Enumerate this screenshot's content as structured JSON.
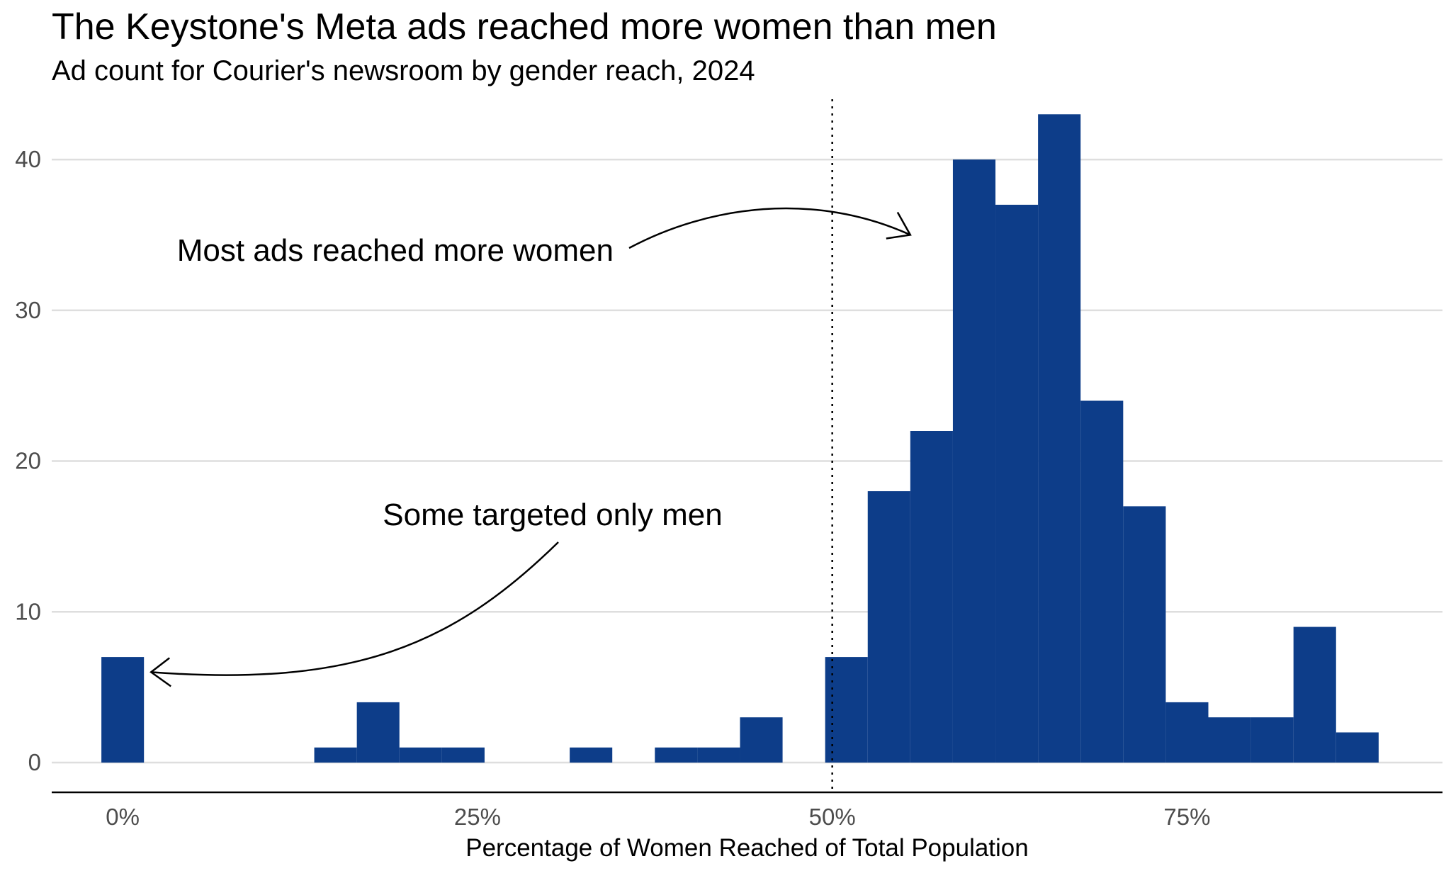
{
  "chart_data": {
    "type": "bar",
    "title": "The Keystone's Meta ads reached more women than men",
    "subtitle": "Ad count for Courier's newsroom by gender reach, 2024",
    "xlabel": "Percentage of Women Reached of Total Population",
    "ylabel": "",
    "bar_color": "#0d3d89",
    "bin_width_pct": 3,
    "xlim": [
      -5,
      93
    ],
    "ylim": [
      0,
      44
    ],
    "x_ticks": [
      0,
      25,
      50,
      75
    ],
    "x_tick_labels": [
      "0%",
      "25%",
      "50%",
      "75%"
    ],
    "y_ticks": [
      0,
      10,
      20,
      30,
      40
    ],
    "y_tick_labels": [
      "0",
      "10",
      "20",
      "30",
      "40"
    ],
    "grid": "horizontal",
    "reference_line": {
      "x": 50,
      "style": "dotted"
    },
    "bins": [
      {
        "x": 0,
        "count": 7
      },
      {
        "x": 15,
        "count": 1
      },
      {
        "x": 18,
        "count": 4
      },
      {
        "x": 21,
        "count": 1
      },
      {
        "x": 24,
        "count": 1
      },
      {
        "x": 33,
        "count": 1
      },
      {
        "x": 39,
        "count": 1
      },
      {
        "x": 42,
        "count": 1
      },
      {
        "x": 45,
        "count": 3
      },
      {
        "x": 51,
        "count": 7
      },
      {
        "x": 54,
        "count": 18
      },
      {
        "x": 57,
        "count": 22
      },
      {
        "x": 60,
        "count": 40
      },
      {
        "x": 63,
        "count": 37
      },
      {
        "x": 66,
        "count": 43
      },
      {
        "x": 69,
        "count": 24
      },
      {
        "x": 72,
        "count": 17
      },
      {
        "x": 75,
        "count": 4
      },
      {
        "x": 78,
        "count": 3
      },
      {
        "x": 81,
        "count": 3
      },
      {
        "x": 84,
        "count": 9
      },
      {
        "x": 87,
        "count": 2
      }
    ],
    "annotations": [
      {
        "text": "Most ads reached more women",
        "points_to": {
          "x": 55.5,
          "y": 35
        }
      },
      {
        "text": "Some targeted only men",
        "points_to": {
          "x": 2,
          "y": 6
        }
      }
    ]
  }
}
